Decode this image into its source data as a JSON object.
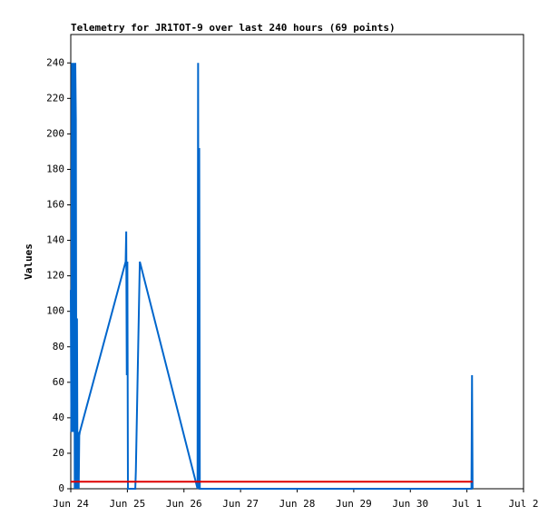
{
  "chart_data": {
    "type": "line",
    "title": "Telemetry for JR1TOT-9 over last 240 hours (69 points)",
    "y_label": "Values",
    "xlim": [
      0,
      8
    ],
    "xticks": [
      {
        "value": 0,
        "label": "Jun 24"
      },
      {
        "value": 1,
        "label": "Jun 25"
      },
      {
        "value": 2,
        "label": "Jun 26"
      },
      {
        "value": 3,
        "label": "Jun 27"
      },
      {
        "value": 4,
        "label": "Jun 28"
      },
      {
        "value": 5,
        "label": "Jun 29"
      },
      {
        "value": 6,
        "label": "Jun 30"
      },
      {
        "value": 7,
        "label": "Jul 1"
      },
      {
        "value": 8,
        "label": "Jul 2"
      }
    ],
    "ylim": [
      0,
      256
    ],
    "yticks": [
      0,
      20,
      40,
      60,
      80,
      100,
      120,
      140,
      160,
      180,
      200,
      220,
      240
    ],
    "series": [
      {
        "color": "#0066cc",
        "x": [
          0.0,
          0.01,
          0.02,
          0.03,
          0.04,
          0.05,
          0.06,
          0.07,
          0.08,
          0.09,
          0.1,
          0.11,
          0.12,
          0.13,
          0.14,
          0.15,
          0.16,
          0.97,
          0.98,
          0.99,
          1.0,
          1.01,
          1.02,
          1.14,
          1.15,
          1.22,
          2.24,
          2.25,
          2.26,
          2.27,
          2.28,
          7.08,
          7.09,
          7.1
        ],
        "values": [
          112,
          32,
          240,
          196,
          32,
          240,
          176,
          0,
          240,
          208,
          0,
          96,
          0,
          32,
          0,
          30,
          32,
          128,
          145,
          64,
          128,
          0,
          0,
          0,
          10,
          128,
          0,
          240,
          0,
          192,
          0,
          0,
          64,
          0
        ]
      },
      {
        "color": "#dd0000",
        "x": [
          0,
          7.1
        ],
        "values": [
          4,
          4
        ]
      }
    ]
  }
}
